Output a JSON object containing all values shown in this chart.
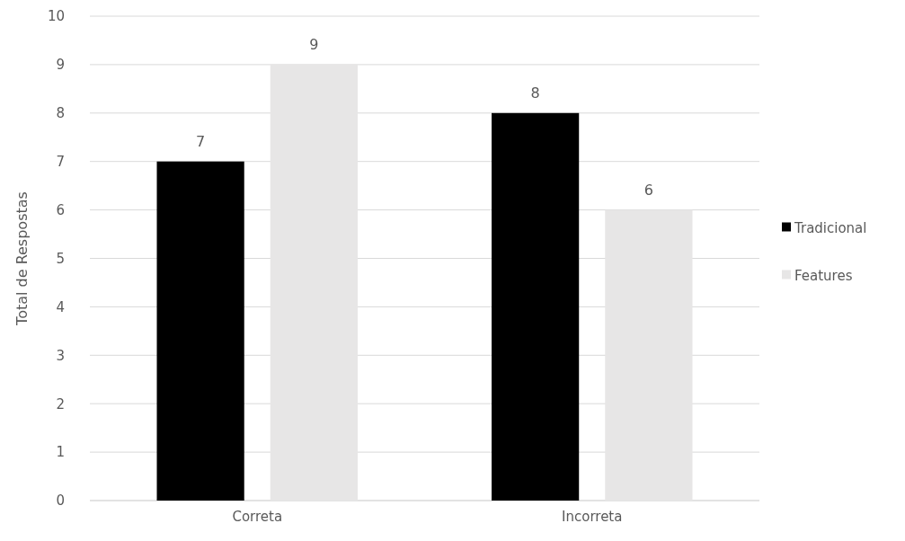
{
  "chart_data": {
    "type": "bar",
    "ylabel": "Total de Respostas",
    "categories": [
      "Correta",
      "Incorreta"
    ],
    "series": [
      {
        "name": "Tradicional",
        "color": "#000000",
        "values": [
          7,
          8
        ]
      },
      {
        "name": "Features",
        "color": "#e7e6e6",
        "values": [
          9,
          6
        ]
      }
    ],
    "ylim": [
      0,
      10
    ],
    "yticks": [
      0,
      1,
      2,
      3,
      4,
      5,
      6,
      7,
      8,
      9,
      10
    ],
    "grid": "y",
    "legend": "right",
    "data_labels": true
  }
}
